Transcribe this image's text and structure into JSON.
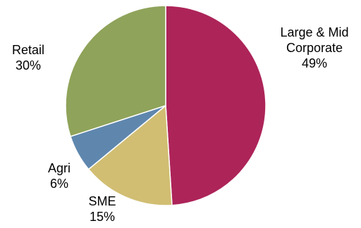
{
  "chart_data": {
    "type": "pie",
    "title": "",
    "slices": [
      {
        "label_lines": [
          "Large & Mid",
          "Corporate"
        ],
        "value_label": "49%",
        "value": 49,
        "color": "#AD2459"
      },
      {
        "label_lines": [
          "SME"
        ],
        "value_label": "15%",
        "value": 15,
        "color": "#D1BE73"
      },
      {
        "label_lines": [
          "Agri"
        ],
        "value_label": "6%",
        "value": 6,
        "color": "#5F87AE"
      },
      {
        "label_lines": [
          "Retail"
        ],
        "value_label": "30%",
        "value": 30,
        "color": "#8FA35A"
      }
    ],
    "start_angle_deg": 0,
    "direction": "clockwise",
    "legend": "none"
  }
}
